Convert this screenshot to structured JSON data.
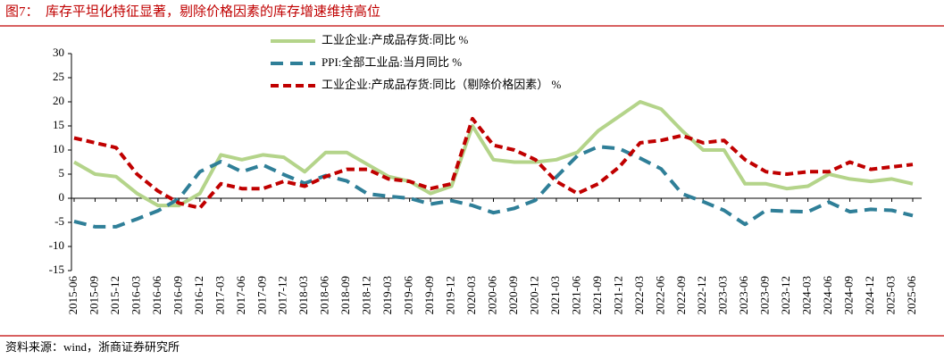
{
  "chart_data": {
    "type": "line",
    "title": "图7：　库存平坦化特征显著，剔除价格因素的库存增速维持高位",
    "source": "资料来源：wind，浙商证券研究所",
    "categories": [
      "2015-06",
      "2015-09",
      "2015-12",
      "2016-03",
      "2016-06",
      "2016-09",
      "2016-12",
      "2017-03",
      "2017-06",
      "2017-09",
      "2017-12",
      "2018-03",
      "2018-06",
      "2018-09",
      "2018-12",
      "2019-03",
      "2019-06",
      "2019-09",
      "2019-12",
      "2020-03",
      "2020-06",
      "2020-09",
      "2020-12",
      "2021-03",
      "2021-06",
      "2021-09",
      "2021-12",
      "2022-03",
      "2022-06",
      "2022-09",
      "2022-12",
      "2023-03",
      "2023-06",
      "2023-09",
      "2023-12",
      "2024-03",
      "2024-06",
      "2024-09",
      "2024-12",
      "2025-03",
      "2025-06"
    ],
    "series": [
      {
        "name": "工业企业:产成品存货:同比 %",
        "color": "#b4d48a",
        "dash": "none",
        "values": [
          7.5,
          5,
          4.5,
          1,
          -1.5,
          -1.5,
          1,
          9,
          8,
          9,
          8.5,
          5.5,
          9.5,
          9.5,
          7,
          4.5,
          3.5,
          1,
          2.5,
          15,
          8,
          7.5,
          7.5,
          8,
          9.5,
          14,
          17,
          20,
          18.5,
          14,
          10,
          10,
          3,
          3,
          2,
          2.5,
          5,
          4,
          3.5,
          4,
          3
        ]
      },
      {
        "name": "PPI:全部工业品:当月同比 %",
        "color": "#2f7f98",
        "dash": "14 8",
        "values": [
          -4.8,
          -5.9,
          -5.9,
          -4.3,
          -2.6,
          -0.1,
          5.5,
          7.6,
          5.5,
          6.9,
          4.9,
          3.1,
          4.7,
          3.6,
          0.9,
          0.4,
          0,
          -1.2,
          -0.5,
          -1.5,
          -3,
          -2.1,
          -0.4,
          4.4,
          8.8,
          10.7,
          10.3,
          8.3,
          6.1,
          0.9,
          -0.7,
          -2.5,
          -5.4,
          -2.5,
          -2.7,
          -2.8,
          -0.8,
          -2.8,
          -2.3,
          -2.5,
          -3.6
        ]
      },
      {
        "name": "工业企业:产成品存货:同比（剔除价格因素） %",
        "color": "#c00000",
        "dash": "9 5",
        "values": [
          12.5,
          11.5,
          10.5,
          5,
          1.5,
          -1,
          -2,
          3,
          2,
          2,
          3.5,
          2.5,
          4.5,
          6,
          6,
          4,
          3.5,
          2,
          3,
          16.5,
          11,
          10,
          8,
          3.5,
          1,
          3,
          6.5,
          11.5,
          12,
          13,
          11.5,
          12,
          8,
          5.5,
          5,
          5.5,
          5.5,
          7.5,
          6,
          6.5,
          7
        ]
      }
    ],
    "ylim": [
      -15,
      30
    ],
    "yticks": [
      -15,
      -10,
      -5,
      0,
      5,
      10,
      15,
      20,
      25,
      30
    ]
  }
}
